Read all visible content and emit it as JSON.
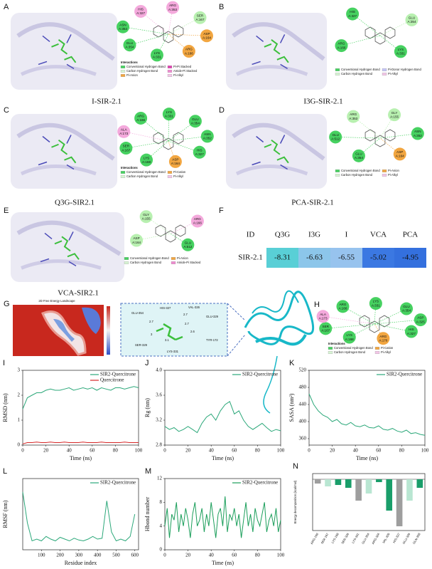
{
  "panels": [
    {
      "letter": "A",
      "caption": "I-SIR-2.1",
      "legend_title": "Interactions",
      "residues": [
        {
          "name": "HIS",
          "id": "A:327",
          "color": "#f4a9dc"
        },
        {
          "name": "ARG",
          "id": "A:353",
          "color": "#f4a9dc"
        },
        {
          "name": "SER",
          "id": "A:167",
          "color": "#b8f0b0"
        },
        {
          "name": "ASP",
          "id": "A:164",
          "color": "#f2a640"
        },
        {
          "name": "ARG",
          "id": "A:166",
          "color": "#f2a640"
        },
        {
          "name": "LYS",
          "id": "A:331",
          "color": "#46d160"
        },
        {
          "name": "GLU",
          "id": "A:354",
          "color": "#46d160"
        },
        {
          "name": "ASN",
          "id": "A:352",
          "color": "#46d160"
        }
      ],
      "legend": [
        {
          "label": "Conventional Hydrogen Bond",
          "color": "#46d160"
        },
        {
          "label": "Pi-Pi Stacked",
          "color": "#e040b0"
        },
        {
          "label": "Carbon Hydrogen Bond",
          "color": "#d8f5d4"
        },
        {
          "label": "Amide-Pi Stacked",
          "color": "#f08ad0"
        },
        {
          "label": "Pi-Anion",
          "color": "#f2a640"
        },
        {
          "label": "Pi-Alkyl",
          "color": "#f4c6e8"
        }
      ]
    },
    {
      "letter": "B",
      "caption": "I3G-SIR-2.1",
      "residues": [
        {
          "name": "HIS",
          "id": "A:327",
          "color": "#46d160"
        },
        {
          "name": "GLU",
          "id": "A:354",
          "color": "#b8f0b0"
        },
        {
          "name": "LYS",
          "id": "A:331",
          "color": "#46d160"
        },
        {
          "name": "ARG",
          "id": "A:166",
          "color": "#46d160"
        }
      ],
      "legend": [
        {
          "label": "Conventional Hydrogen Bond",
          "color": "#46d160"
        },
        {
          "label": "Pi-Donor Hydrogen Bond",
          "color": "#c4c4f8"
        },
        {
          "label": "Carbon Hydrogen Bond",
          "color": "#d8f5d4"
        },
        {
          "label": "Pi-Alkyl",
          "color": "#f4c6e8"
        }
      ]
    },
    {
      "letter": "C",
      "caption": "Q3G-SIR2.1",
      "legend_title": "Interactions",
      "residues": [
        {
          "name": "ARG",
          "id": "A:166",
          "color": "#46d160"
        },
        {
          "name": "LYS",
          "id": "A:331",
          "color": "#46d160"
        },
        {
          "name": "GLU",
          "id": "A:354",
          "color": "#46d160"
        },
        {
          "name": "ASN",
          "id": "A:352",
          "color": "#46d160"
        },
        {
          "name": "HIS",
          "id": "A:327",
          "color": "#46d160"
        },
        {
          "name": "ASP",
          "id": "A:164",
          "color": "#f2a640"
        },
        {
          "name": "LYS",
          "id": "A:168",
          "color": "#46d160"
        },
        {
          "name": "SER",
          "id": "A:167",
          "color": "#46d160"
        },
        {
          "name": "ALA",
          "id": "A:173",
          "color": "#f4a9dc"
        }
      ],
      "legend": [
        {
          "label": "Conventional Hydrogen Bond",
          "color": "#46d160"
        },
        {
          "label": "Pi-Cation",
          "color": "#f2a640"
        },
        {
          "label": "Carbon Hydrogen Bond",
          "color": "#d8f5d4"
        },
        {
          "label": "Pi-Alkyl",
          "color": "#f4c6e8"
        }
      ]
    },
    {
      "letter": "D",
      "caption": "PCA-SIR-2.1",
      "residues": [
        {
          "name": "ARG",
          "id": "A:353",
          "color": "#b8f0b0"
        },
        {
          "name": "GLY",
          "id": "A:155",
          "color": "#b8f0b0"
        },
        {
          "name": "ASN",
          "id": "A:352",
          "color": "#46d160"
        },
        {
          "name": "ASP",
          "id": "A:164",
          "color": "#f2a640"
        },
        {
          "name": "GLU",
          "id": "A:354",
          "color": "#46d160"
        },
        {
          "name": "GLU",
          "id": "A:512",
          "color": "#46d160"
        }
      ],
      "legend": [
        {
          "label": "Conventional Hydrogen Bond",
          "color": "#46d160"
        },
        {
          "label": "Pi-Anion",
          "color": "#f2a640"
        },
        {
          "label": "Carbon Hydrogen Bond",
          "color": "#d8f5d4"
        },
        {
          "label": "Pi-Alkyl",
          "color": "#f4c6e8"
        }
      ]
    },
    {
      "letter": "E",
      "caption": "VCA-SIR2.1",
      "residues": [
        {
          "name": "GLY",
          "id": "A:155",
          "color": "#b8f0b0"
        },
        {
          "name": "ARG",
          "id": "A:166",
          "color": "#f4a9dc"
        },
        {
          "name": "GLU",
          "id": "A:512",
          "color": "#46d160"
        },
        {
          "name": "ASP",
          "id": "A:164",
          "color": "#b8f0b0"
        }
      ],
      "legend": [
        {
          "label": "Conventional Hydrogen Bond",
          "color": "#46d160"
        },
        {
          "label": "Pi-Anion",
          "color": "#f2a640"
        },
        {
          "label": "Carbon Hydrogen Bond",
          "color": "#d8f5d4"
        },
        {
          "label": "Amide-Pi Stacked",
          "color": "#f08ad0"
        }
      ]
    },
    {
      "letter": "H",
      "legend_title": "Interactions",
      "residues": [
        {
          "name": "ARG",
          "id": "A:166",
          "color": "#46d160"
        },
        {
          "name": "LYS",
          "id": "A:331",
          "color": "#46d160"
        },
        {
          "name": "GLU",
          "id": "A:354",
          "color": "#46d160"
        },
        {
          "name": "ASP",
          "id": "A:325",
          "color": "#46d160"
        },
        {
          "name": "HIS",
          "id": "A:327",
          "color": "#46d160"
        },
        {
          "name": "ARG",
          "id": "A:170",
          "color": "#f2a640"
        },
        {
          "name": "LYS",
          "id": "A:168",
          "color": "#46d160"
        },
        {
          "name": "SER",
          "id": "A:167",
          "color": "#46d160"
        },
        {
          "name": "ALA",
          "id": "A:173",
          "color": "#f4a9dc"
        }
      ],
      "legend": [
        {
          "label": "Conventional Hydrogen Bond",
          "color": "#46d160"
        },
        {
          "label": "Pi-Cation",
          "color": "#f2a640"
        },
        {
          "label": "Carbon Hydrogen Bond",
          "color": "#d8f5d4"
        },
        {
          "label": "Pi-Alkyl",
          "color": "#f4c6e8"
        }
      ]
    }
  ],
  "table": {
    "letter": "F",
    "header": [
      "ID",
      "Q3G",
      "I3G",
      "I",
      "VCA",
      "PCA"
    ],
    "rows": [
      [
        "SIR-2.1",
        -8.31,
        -6.63,
        -6.55,
        -5.02,
        -4.95
      ]
    ],
    "cell_colors": [
      "#59cfd6",
      "#8cc6ea",
      "#97c3ee",
      "#3b78e2",
      "#3470de"
    ]
  },
  "landscape": {
    "letter": "G",
    "title": "2D Free Energy Landscape",
    "residues": [
      "GLU-354",
      "HIS-327",
      "VAL-326",
      "GLU-329",
      "SER-329",
      "LYS-331",
      "TYR-172"
    ],
    "distances": [
      2.7,
      2.7,
      3.0,
      3.1,
      2.6,
      2.7
    ]
  },
  "chart_data": [
    {
      "type": "line",
      "letter": "I",
      "xlabel": "Time (ns)",
      "ylabel": "RMSD (nm)",
      "x": [
        0,
        4,
        8,
        12,
        16,
        20,
        24,
        28,
        32,
        36,
        40,
        44,
        48,
        52,
        56,
        60,
        64,
        68,
        72,
        76,
        80,
        84,
        88,
        92,
        96,
        100
      ],
      "xlim": [
        0,
        100
      ],
      "xticks": [
        0,
        20,
        40,
        60,
        80,
        100
      ],
      "ylim": [
        0,
        3
      ],
      "yticks": [
        0,
        1,
        2,
        3
      ],
      "series": [
        {
          "name": "SIR2-Quercitrone",
          "color": "#2ca87a",
          "values": [
            1.45,
            1.9,
            2.0,
            2.1,
            2.1,
            2.2,
            2.25,
            2.2,
            2.2,
            2.25,
            2.3,
            2.2,
            2.25,
            2.3,
            2.25,
            2.3,
            2.2,
            2.3,
            2.25,
            2.2,
            2.3,
            2.3,
            2.25,
            2.3,
            2.35,
            2.3
          ]
        },
        {
          "name": "Quercitrone",
          "color": "#d62728",
          "values": [
            0.05,
            0.1,
            0.1,
            0.12,
            0.1,
            0.1,
            0.12,
            0.1,
            0.1,
            0.12,
            0.1,
            0.1,
            0.1,
            0.12,
            0.1,
            0.1,
            0.1,
            0.12,
            0.1,
            0.1,
            0.1,
            0.1,
            0.12,
            0.1,
            0.1,
            0.1
          ]
        }
      ]
    },
    {
      "type": "line",
      "letter": "J",
      "xlabel": "Time (ns)",
      "ylabel": "Rg (nm)",
      "x": [
        0,
        4,
        8,
        12,
        16,
        20,
        24,
        28,
        32,
        36,
        40,
        44,
        48,
        52,
        56,
        60,
        64,
        68,
        72,
        76,
        80,
        84,
        88,
        92,
        96,
        100
      ],
      "xlim": [
        0,
        100
      ],
      "xticks": [
        0,
        20,
        40,
        60,
        80,
        100
      ],
      "ylim": [
        2.8,
        4.0
      ],
      "yticks": [
        2.8,
        3.2,
        3.6,
        {
          "value": 4,
          "label": "4.0"
        }
      ],
      "series": [
        {
          "name": "SIR2-Quercitrone",
          "color": "#2ca87a",
          "values": [
            3.1,
            3.05,
            3.08,
            3.02,
            3.05,
            3.1,
            3.05,
            3.0,
            3.15,
            3.25,
            3.3,
            3.2,
            3.35,
            3.45,
            3.5,
            3.3,
            3.35,
            3.2,
            3.1,
            3.05,
            3.1,
            3.15,
            3.08,
            3.02,
            3.05,
            3.03
          ]
        }
      ]
    },
    {
      "type": "line",
      "letter": "K",
      "xlabel": "Time (ns)",
      "ylabel": "SASA (nm²)",
      "x": [
        0,
        4,
        8,
        12,
        16,
        20,
        24,
        28,
        32,
        36,
        40,
        44,
        48,
        52,
        56,
        60,
        64,
        68,
        72,
        76,
        80,
        84,
        88,
        92,
        96,
        100
      ],
      "xlim": [
        0,
        100
      ],
      "xticks": [
        0,
        20,
        40,
        60,
        80,
        100
      ],
      "ylim": [
        345,
        520
      ],
      "yticks": [
        360,
        400,
        440,
        480,
        520
      ],
      "series": [
        {
          "name": "SIR2-Quercitrone",
          "color": "#2ca87a",
          "values": [
            465,
            440,
            425,
            415,
            410,
            400,
            405,
            395,
            392,
            398,
            390,
            388,
            392,
            386,
            385,
            390,
            382,
            380,
            384,
            378,
            375,
            380,
            372,
            374,
            370,
            368
          ]
        }
      ]
    },
    {
      "type": "line",
      "letter": "L",
      "xlabel": "Residue index",
      "ylabel": "RMSF (nm)",
      "x": [
        0,
        25,
        50,
        75,
        100,
        125,
        150,
        175,
        200,
        225,
        250,
        275,
        300,
        325,
        350,
        375,
        400,
        425,
        450,
        475,
        500,
        525,
        550,
        575,
        600
      ],
      "xlim": [
        0,
        620
      ],
      "xticks": [
        100,
        200,
        300,
        400,
        500,
        600
      ],
      "ylim": [
        0,
        0.8
      ],
      "series": [
        {
          "name": "SIR2-Quercitrone",
          "color": "#2ca87a",
          "values": [
            0.65,
            0.3,
            0.1,
            0.12,
            0.1,
            0.15,
            0.12,
            0.1,
            0.14,
            0.12,
            0.1,
            0.13,
            0.11,
            0.1,
            0.12,
            0.15,
            0.12,
            0.13,
            0.55,
            0.2,
            0.1,
            0.12,
            0.1,
            0.15,
            0.4
          ]
        }
      ]
    },
    {
      "type": "line",
      "letter": "M",
      "xlabel": "Time (ns)",
      "ylabel": "Hbond number",
      "x": [
        0,
        2,
        4,
        6,
        8,
        10,
        12,
        14,
        16,
        18,
        20,
        22,
        24,
        26,
        28,
        30,
        32,
        34,
        36,
        38,
        40,
        42,
        44,
        46,
        48,
        50,
        52,
        54,
        56,
        58,
        60,
        62,
        64,
        66,
        68,
        70,
        72,
        74,
        76,
        78,
        80,
        82,
        84,
        86,
        88,
        90,
        92,
        94,
        96,
        98,
        100
      ],
      "xlim": [
        0,
        100
      ],
      "xticks": [
        0,
        20,
        40,
        60,
        80,
        100
      ],
      "ylim": [
        0,
        12
      ],
      "yticks": [
        0,
        4,
        8,
        12
      ],
      "series": [
        {
          "name": "SIR2-Quercitrone",
          "color": "#1a9e5a",
          "values": [
            4,
            7,
            2,
            6,
            5,
            8,
            3,
            6,
            4,
            7,
            5,
            2,
            6,
            8,
            4,
            5,
            7,
            3,
            6,
            4,
            8,
            5,
            2,
            6,
            7,
            4,
            9,
            3,
            6,
            5,
            7,
            4,
            6,
            2,
            5,
            8,
            4,
            6,
            3,
            7,
            5,
            4,
            6,
            8,
            3,
            5,
            6,
            4,
            7,
            3,
            5
          ]
        }
      ]
    },
    {
      "type": "bar",
      "letter": "N",
      "ylabel": "Energy decomposition (kcal/mol)",
      "categories": [
        "ARG-160",
        "SER-167",
        "LYS-168",
        "SER-329",
        "LYS-331",
        "GLU-354",
        "ARG-324",
        "VAL-326",
        "HIS-327",
        "GLU-329",
        "GLN-358"
      ],
      "values": [
        -0.3,
        -0.5,
        -0.4,
        -0.6,
        -1.5,
        -1.0,
        -0.2,
        -2.2,
        -3.3,
        -1.5,
        -0.6
      ],
      "colors": [
        "#9e9e9e",
        "#b9e6d2",
        "#1a9e6a",
        "#1a9e6a",
        "#9e9e9e",
        "#b9e6d2",
        "#1a9e6a",
        "#1a9e6a",
        "#9e9e9e",
        "#b9e6d2",
        "#1a9e6a"
      ],
      "ylim": [
        -3.6,
        0.4
      ]
    }
  ]
}
